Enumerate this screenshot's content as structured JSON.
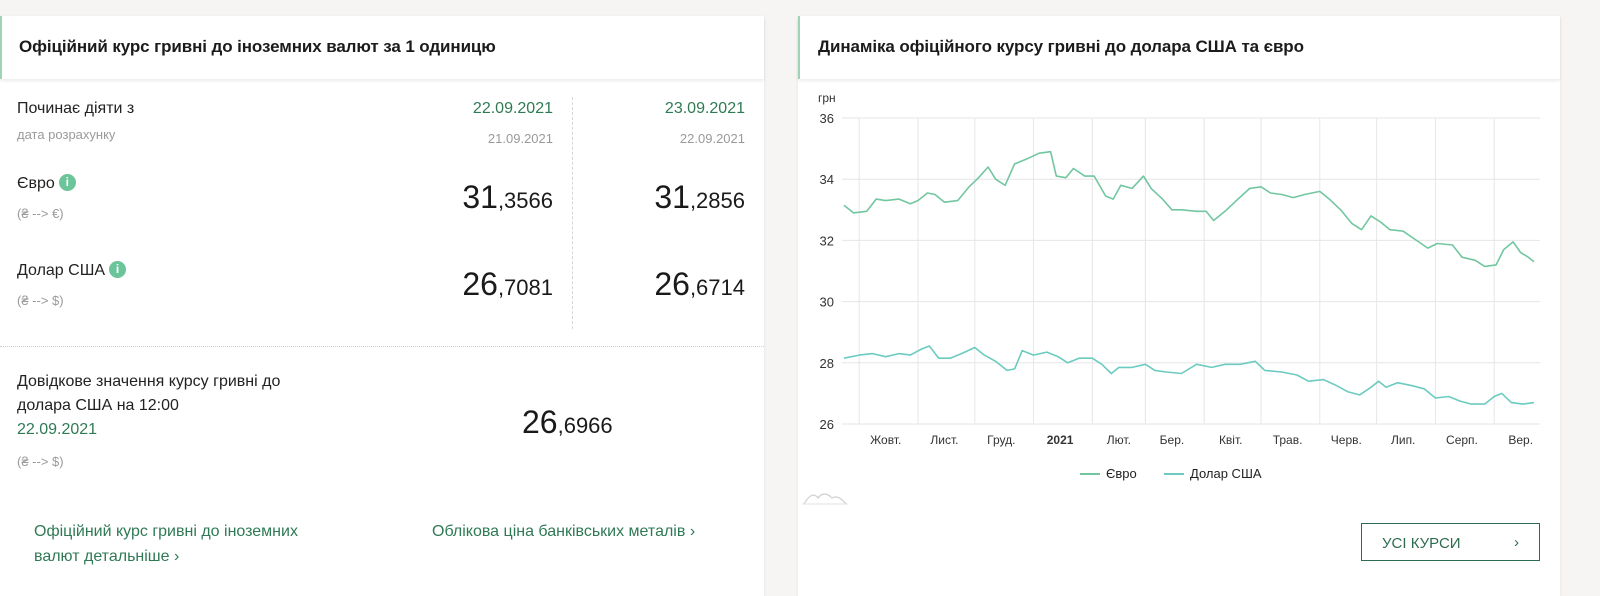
{
  "left": {
    "title": "Офіційний курс гривні до іноземних валют за 1 одиницю",
    "effective_label": "Починає діяти з",
    "calc_label": "дата розрахунку",
    "columns": [
      {
        "effective": "22.09.2021",
        "calc": "21.09.2021",
        "eur_int": "31",
        "eur_frac": ",3566",
        "usd_int": "26",
        "usd_frac": ",7081"
      },
      {
        "effective": "23.09.2021",
        "calc": "22.09.2021",
        "eur_int": "31",
        "eur_frac": ",2856",
        "usd_int": "26",
        "usd_frac": ",6714"
      }
    ],
    "eur_label": "Євро",
    "eur_sub": "(₴ --> €)",
    "usd_label": "Долар США",
    "usd_sub": "(₴ --> $)",
    "info_glyph": "i",
    "ref_line1": "Довідкове значення курсу гривні до",
    "ref_line2": "долара США на 12:00",
    "ref_date": "22.09.2021",
    "ref_sub": "(₴ --> $)",
    "ref_int": "26",
    "ref_frac": ",6966",
    "link1_line1": "Офіційний курс гривні до іноземних",
    "link1_line2": "валют детальніше",
    "link2": "Облікова ціна банківських металів",
    "chevron": "›"
  },
  "right": {
    "title": "Динаміка офіційного курсу гривні до долара США та євро",
    "button_label": "УСІ КУРСИ",
    "chevron": "›"
  },
  "colors": {
    "accent": "#2f7a55",
    "euro": "#72c6a0",
    "usd": "#6ccbc0",
    "info": "#6cc49a"
  },
  "chart_data": {
    "type": "line",
    "ylabel": "грн",
    "ylim": [
      26,
      36
    ],
    "yticks": [
      26,
      28,
      30,
      32,
      34,
      36
    ],
    "xlim": [
      "2020-09-23",
      "2021-09-22"
    ],
    "xtick_labels": [
      {
        "date": "2020-10-01",
        "label": "Жовт."
      },
      {
        "date": "2020-11-01",
        "label": "Лист."
      },
      {
        "date": "2020-12-01",
        "label": "Груд."
      },
      {
        "date": "2021-01-01",
        "label": "2021",
        "bold": true
      },
      {
        "date": "2021-02-01",
        "label": "Лют."
      },
      {
        "date": "2021-03-01",
        "label": "Бер."
      },
      {
        "date": "2021-04-01",
        "label": "Квіт."
      },
      {
        "date": "2021-05-01",
        "label": "Трав."
      },
      {
        "date": "2021-06-01",
        "label": "Черв."
      },
      {
        "date": "2021-07-01",
        "label": "Лип."
      },
      {
        "date": "2021-08-01",
        "label": "Серп."
      },
      {
        "date": "2021-09-01",
        "label": "Вер."
      }
    ],
    "grid": true,
    "legend": "bottom",
    "series": [
      {
        "name": "Євро",
        "color": "#72c6a0",
        "points": [
          [
            "2020-09-23",
            33.15
          ],
          [
            "2020-09-28",
            32.9
          ],
          [
            "2020-10-05",
            32.95
          ],
          [
            "2020-10-10",
            33.35
          ],
          [
            "2020-10-15",
            33.3
          ],
          [
            "2020-10-22",
            33.35
          ],
          [
            "2020-10-28",
            33.2
          ],
          [
            "2020-11-01",
            33.3
          ],
          [
            "2020-11-06",
            33.55
          ],
          [
            "2020-11-10",
            33.5
          ],
          [
            "2020-11-15",
            33.25
          ],
          [
            "2020-11-22",
            33.3
          ],
          [
            "2020-11-28",
            33.75
          ],
          [
            "2020-12-03",
            34.05
          ],
          [
            "2020-12-08",
            34.4
          ],
          [
            "2020-12-12",
            34.0
          ],
          [
            "2020-12-17",
            33.8
          ],
          [
            "2020-12-22",
            34.5
          ],
          [
            "2020-12-28",
            34.65
          ],
          [
            "2021-01-04",
            34.85
          ],
          [
            "2021-01-10",
            34.9
          ],
          [
            "2021-01-13",
            34.1
          ],
          [
            "2021-01-18",
            34.05
          ],
          [
            "2021-01-22",
            34.35
          ],
          [
            "2021-01-28",
            34.1
          ],
          [
            "2021-02-02",
            34.1
          ],
          [
            "2021-02-08",
            33.45
          ],
          [
            "2021-02-12",
            33.35
          ],
          [
            "2021-02-16",
            33.8
          ],
          [
            "2021-02-22",
            33.7
          ],
          [
            "2021-02-28",
            34.1
          ],
          [
            "2021-03-04",
            33.7
          ],
          [
            "2021-03-10",
            33.35
          ],
          [
            "2021-03-15",
            33.0
          ],
          [
            "2021-03-20",
            33.0
          ],
          [
            "2021-03-28",
            32.95
          ],
          [
            "2021-04-02",
            32.95
          ],
          [
            "2021-04-06",
            32.65
          ],
          [
            "2021-04-12",
            32.95
          ],
          [
            "2021-04-18",
            33.3
          ],
          [
            "2021-04-25",
            33.7
          ],
          [
            "2021-05-01",
            33.75
          ],
          [
            "2021-05-06",
            33.55
          ],
          [
            "2021-05-12",
            33.5
          ],
          [
            "2021-05-18",
            33.4
          ],
          [
            "2021-05-24",
            33.5
          ],
          [
            "2021-06-01",
            33.6
          ],
          [
            "2021-06-06",
            33.35
          ],
          [
            "2021-06-12",
            33.0
          ],
          [
            "2021-06-18",
            32.55
          ],
          [
            "2021-06-23",
            32.35
          ],
          [
            "2021-06-28",
            32.8
          ],
          [
            "2021-07-03",
            32.6
          ],
          [
            "2021-07-08",
            32.35
          ],
          [
            "2021-07-15",
            32.3
          ],
          [
            "2021-07-22",
            32.0
          ],
          [
            "2021-07-28",
            31.75
          ],
          [
            "2021-08-02",
            31.9
          ],
          [
            "2021-08-10",
            31.85
          ],
          [
            "2021-08-15",
            31.45
          ],
          [
            "2021-08-22",
            31.35
          ],
          [
            "2021-08-27",
            31.15
          ],
          [
            "2021-09-02",
            31.2
          ],
          [
            "2021-09-06",
            31.7
          ],
          [
            "2021-09-11",
            31.95
          ],
          [
            "2021-09-15",
            31.6
          ],
          [
            "2021-09-19",
            31.45
          ],
          [
            "2021-09-22",
            31.3
          ]
        ]
      },
      {
        "name": "Долар США",
        "color": "#6ccbc0",
        "points": [
          [
            "2020-09-23",
            28.15
          ],
          [
            "2020-10-01",
            28.25
          ],
          [
            "2020-10-08",
            28.3
          ],
          [
            "2020-10-15",
            28.2
          ],
          [
            "2020-10-22",
            28.3
          ],
          [
            "2020-10-28",
            28.25
          ],
          [
            "2020-11-03",
            28.45
          ],
          [
            "2020-11-07",
            28.55
          ],
          [
            "2020-11-12",
            28.15
          ],
          [
            "2020-11-18",
            28.15
          ],
          [
            "2020-11-24",
            28.3
          ],
          [
            "2020-12-01",
            28.5
          ],
          [
            "2020-12-06",
            28.25
          ],
          [
            "2020-12-12",
            28.05
          ],
          [
            "2020-12-18",
            27.75
          ],
          [
            "2020-12-22",
            27.8
          ],
          [
            "2020-12-26",
            28.4
          ],
          [
            "2021-01-01",
            28.25
          ],
          [
            "2021-01-08",
            28.35
          ],
          [
            "2021-01-14",
            28.2
          ],
          [
            "2021-01-19",
            28.0
          ],
          [
            "2021-01-25",
            28.15
          ],
          [
            "2021-02-01",
            28.15
          ],
          [
            "2021-02-06",
            27.95
          ],
          [
            "2021-02-11",
            27.65
          ],
          [
            "2021-02-15",
            27.85
          ],
          [
            "2021-02-22",
            27.85
          ],
          [
            "2021-03-01",
            27.95
          ],
          [
            "2021-03-06",
            27.75
          ],
          [
            "2021-03-12",
            27.7
          ],
          [
            "2021-03-20",
            27.65
          ],
          [
            "2021-03-28",
            27.95
          ],
          [
            "2021-04-05",
            27.85
          ],
          [
            "2021-04-12",
            27.95
          ],
          [
            "2021-04-20",
            27.95
          ],
          [
            "2021-04-28",
            28.05
          ],
          [
            "2021-05-03",
            27.75
          ],
          [
            "2021-05-12",
            27.7
          ],
          [
            "2021-05-20",
            27.6
          ],
          [
            "2021-05-26",
            27.4
          ],
          [
            "2021-06-03",
            27.45
          ],
          [
            "2021-06-10",
            27.25
          ],
          [
            "2021-06-16",
            27.05
          ],
          [
            "2021-06-22",
            26.95
          ],
          [
            "2021-06-28",
            27.2
          ],
          [
            "2021-07-02",
            27.4
          ],
          [
            "2021-07-06",
            27.2
          ],
          [
            "2021-07-12",
            27.35
          ],
          [
            "2021-07-20",
            27.25
          ],
          [
            "2021-07-26",
            27.15
          ],
          [
            "2021-08-01",
            26.85
          ],
          [
            "2021-08-08",
            26.9
          ],
          [
            "2021-08-14",
            26.75
          ],
          [
            "2021-08-20",
            26.65
          ],
          [
            "2021-08-27",
            26.65
          ],
          [
            "2021-09-01",
            26.9
          ],
          [
            "2021-09-05",
            27.0
          ],
          [
            "2021-09-10",
            26.7
          ],
          [
            "2021-09-16",
            26.65
          ],
          [
            "2021-09-22",
            26.7
          ]
        ]
      }
    ]
  }
}
